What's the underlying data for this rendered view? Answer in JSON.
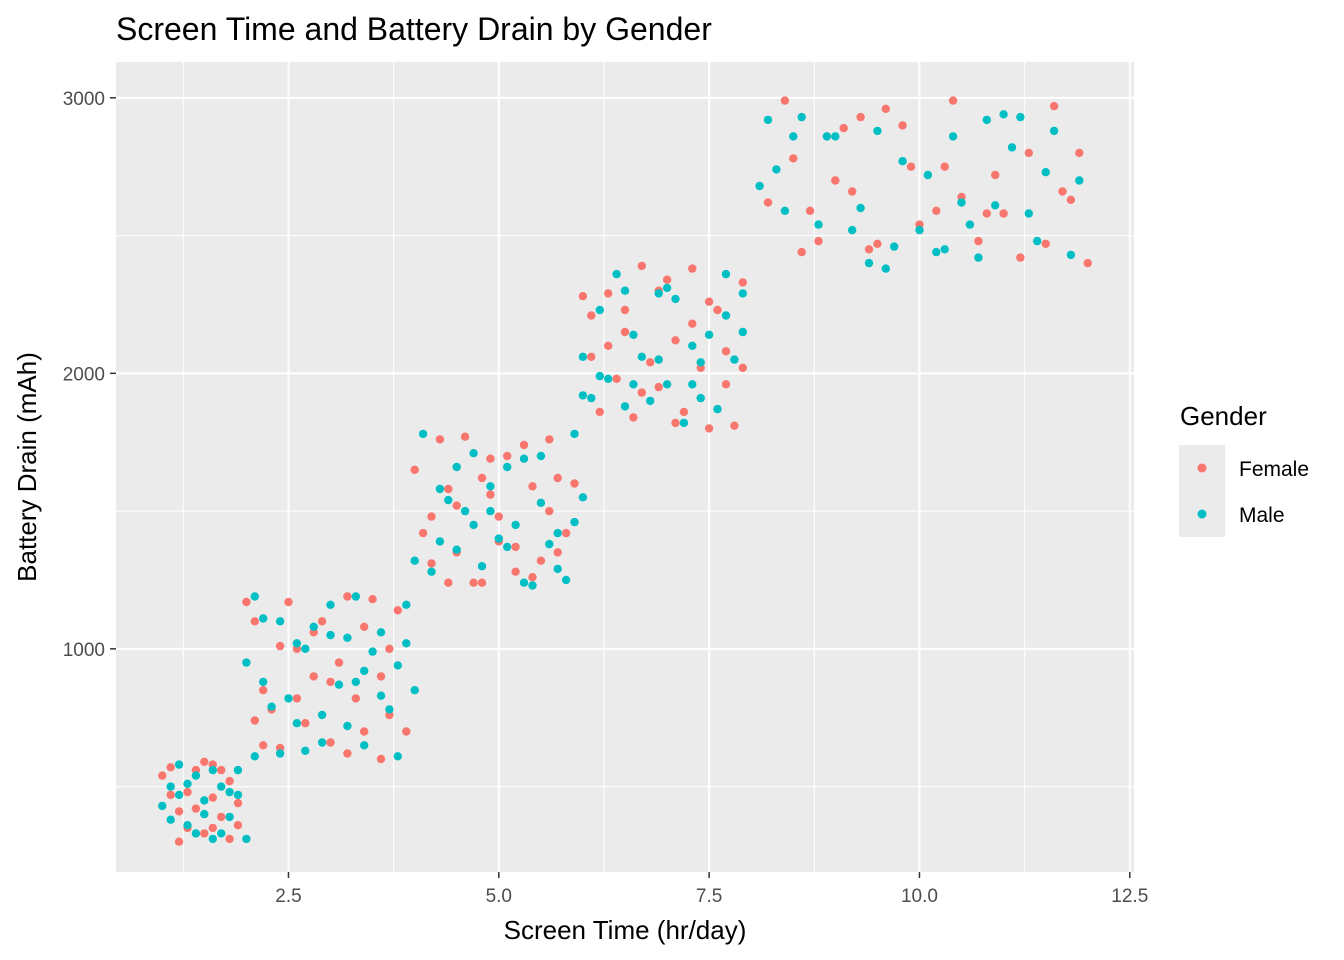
{
  "chart_data": {
    "type": "scatter",
    "title": "Screen Time and Battery Drain by Gender",
    "xlabel": "Screen Time (hr/day)",
    "ylabel": "Battery Drain (mAh)",
    "xlim": [
      0.45,
      12.55
    ],
    "ylim": [
      190,
      3130
    ],
    "x_ticks": [
      2.5,
      5.0,
      7.5,
      10.0,
      12.5
    ],
    "x_tick_labels": [
      "2.5",
      "5.0",
      "7.5",
      "10.0",
      "12.5"
    ],
    "y_ticks": [
      1000,
      2000,
      3000
    ],
    "y_tick_labels": [
      "1000",
      "2000",
      "3000"
    ],
    "grid": true,
    "legend": {
      "title": "Gender",
      "position": "right",
      "entries": [
        "Female",
        "Male"
      ]
    },
    "colors": {
      "Female": "#F8766D",
      "Male": "#00BFC4",
      "panel": "#EBEBEB",
      "grid": "#FFFFFF"
    },
    "series": [
      {
        "name": "Female",
        "points": [
          [
            1.0,
            540
          ],
          [
            1.1,
            570
          ],
          [
            1.2,
            300
          ],
          [
            1.3,
            480
          ],
          [
            1.4,
            420
          ],
          [
            1.5,
            590
          ],
          [
            1.6,
            350
          ],
          [
            1.7,
            560
          ],
          [
            1.8,
            310
          ],
          [
            1.9,
            440
          ],
          [
            1.3,
            350
          ],
          [
            1.6,
            460
          ],
          [
            1.2,
            410
          ],
          [
            1.5,
            330
          ],
          [
            1.8,
            520
          ],
          [
            1.4,
            560
          ],
          [
            1.1,
            470
          ],
          [
            1.7,
            390
          ],
          [
            1.9,
            360
          ],
          [
            1.6,
            580
          ],
          [
            2.0,
            1170
          ],
          [
            2.1,
            1100
          ],
          [
            2.2,
            850
          ],
          [
            2.3,
            780
          ],
          [
            2.4,
            640
          ],
          [
            2.5,
            1170
          ],
          [
            2.6,
            1000
          ],
          [
            2.7,
            730
          ],
          [
            2.8,
            900
          ],
          [
            2.9,
            1100
          ],
          [
            3.0,
            660
          ],
          [
            3.1,
            950
          ],
          [
            3.2,
            1190
          ],
          [
            3.3,
            820
          ],
          [
            3.4,
            700
          ],
          [
            3.5,
            1180
          ],
          [
            3.6,
            900
          ],
          [
            3.7,
            760
          ],
          [
            3.8,
            1140
          ],
          [
            3.9,
            700
          ],
          [
            2.2,
            650
          ],
          [
            2.6,
            820
          ],
          [
            3.0,
            880
          ],
          [
            3.4,
            1080
          ],
          [
            3.7,
            1000
          ],
          [
            2.4,
            1010
          ],
          [
            3.2,
            620
          ],
          [
            2.8,
            1060
          ],
          [
            3.6,
            600
          ],
          [
            2.1,
            740
          ],
          [
            4.0,
            1650
          ],
          [
            4.1,
            1420
          ],
          [
            4.2,
            1310
          ],
          [
            4.3,
            1760
          ],
          [
            4.4,
            1580
          ],
          [
            4.5,
            1350
          ],
          [
            4.6,
            1770
          ],
          [
            4.7,
            1240
          ],
          [
            4.8,
            1620
          ],
          [
            4.9,
            1560
          ],
          [
            5.0,
            1480
          ],
          [
            5.1,
            1700
          ],
          [
            5.2,
            1280
          ],
          [
            5.3,
            1740
          ],
          [
            5.4,
            1590
          ],
          [
            5.5,
            1320
          ],
          [
            5.6,
            1500
          ],
          [
            5.7,
            1620
          ],
          [
            5.8,
            1420
          ],
          [
            5.9,
            1600
          ],
          [
            4.5,
            1520
          ],
          [
            4.8,
            1240
          ],
          [
            5.2,
            1370
          ],
          [
            5.6,
            1760
          ],
          [
            4.2,
            1480
          ],
          [
            4.9,
            1690
          ],
          [
            5.4,
            1260
          ],
          [
            4.4,
            1240
          ],
          [
            5.0,
            1390
          ],
          [
            5.7,
            1350
          ],
          [
            6.0,
            2280
          ],
          [
            6.1,
            2060
          ],
          [
            6.2,
            1860
          ],
          [
            6.3,
            2290
          ],
          [
            6.4,
            1980
          ],
          [
            6.5,
            2150
          ],
          [
            6.6,
            1840
          ],
          [
            6.7,
            2390
          ],
          [
            6.8,
            2040
          ],
          [
            6.9,
            1950
          ],
          [
            7.0,
            2340
          ],
          [
            7.1,
            2120
          ],
          [
            7.2,
            1860
          ],
          [
            7.3,
            2380
          ],
          [
            7.4,
            2020
          ],
          [
            7.5,
            1800
          ],
          [
            7.6,
            2230
          ],
          [
            7.7,
            2080
          ],
          [
            7.8,
            1810
          ],
          [
            7.9,
            2330
          ],
          [
            6.5,
            2230
          ],
          [
            6.9,
            2300
          ],
          [
            7.3,
            2180
          ],
          [
            7.7,
            1960
          ],
          [
            6.3,
            2100
          ],
          [
            7.1,
            1820
          ],
          [
            6.7,
            1930
          ],
          [
            7.5,
            2260
          ],
          [
            6.1,
            2210
          ],
          [
            7.9,
            2020
          ],
          [
            8.2,
            2620
          ],
          [
            8.4,
            2990
          ],
          [
            8.5,
            2780
          ],
          [
            8.6,
            2440
          ],
          [
            8.7,
            2590
          ],
          [
            8.9,
            2860
          ],
          [
            9.0,
            2700
          ],
          [
            9.2,
            2660
          ],
          [
            9.3,
            2930
          ],
          [
            9.4,
            2450
          ],
          [
            9.5,
            2470
          ],
          [
            9.6,
            2960
          ],
          [
            9.8,
            2900
          ],
          [
            10.0,
            2540
          ],
          [
            10.2,
            2590
          ],
          [
            10.4,
            2990
          ],
          [
            10.5,
            2640
          ],
          [
            10.7,
            2480
          ],
          [
            10.9,
            2720
          ],
          [
            11.0,
            2580
          ],
          [
            11.2,
            2420
          ],
          [
            11.3,
            2800
          ],
          [
            11.5,
            2470
          ],
          [
            11.6,
            2970
          ],
          [
            11.7,
            2660
          ],
          [
            11.9,
            2800
          ],
          [
            12.0,
            2400
          ],
          [
            9.1,
            2890
          ],
          [
            9.9,
            2750
          ],
          [
            10.8,
            2580
          ],
          [
            11.8,
            2630
          ],
          [
            8.8,
            2480
          ],
          [
            10.3,
            2750
          ]
        ]
      },
      {
        "name": "Male",
        "points": [
          [
            1.0,
            430
          ],
          [
            1.1,
            500
          ],
          [
            1.2,
            580
          ],
          [
            1.3,
            360
          ],
          [
            1.4,
            540
          ],
          [
            1.5,
            400
          ],
          [
            1.6,
            310
          ],
          [
            1.7,
            500
          ],
          [
            1.8,
            480
          ],
          [
            1.9,
            560
          ],
          [
            2.0,
            310
          ],
          [
            1.2,
            470
          ],
          [
            1.5,
            450
          ],
          [
            1.8,
            390
          ],
          [
            1.3,
            510
          ],
          [
            1.6,
            560
          ],
          [
            1.1,
            380
          ],
          [
            1.7,
            330
          ],
          [
            1.4,
            330
          ],
          [
            1.9,
            470
          ],
          [
            2.0,
            950
          ],
          [
            2.1,
            1190
          ],
          [
            2.2,
            1110
          ],
          [
            2.3,
            790
          ],
          [
            2.4,
            620
          ],
          [
            2.5,
            820
          ],
          [
            2.6,
            1020
          ],
          [
            2.7,
            630
          ],
          [
            2.8,
            1080
          ],
          [
            2.9,
            660
          ],
          [
            3.0,
            1160
          ],
          [
            3.1,
            870
          ],
          [
            3.2,
            720
          ],
          [
            3.3,
            1190
          ],
          [
            3.4,
            650
          ],
          [
            3.5,
            990
          ],
          [
            3.6,
            830
          ],
          [
            3.7,
            780
          ],
          [
            3.8,
            610
          ],
          [
            3.9,
            1160
          ],
          [
            4.0,
            850
          ],
          [
            2.2,
            880
          ],
          [
            2.6,
            730
          ],
          [
            3.0,
            1050
          ],
          [
            3.4,
            920
          ],
          [
            3.8,
            940
          ],
          [
            2.4,
            1100
          ],
          [
            3.2,
            1040
          ],
          [
            3.6,
            1060
          ],
          [
            2.9,
            760
          ],
          [
            2.1,
            610
          ],
          [
            3.9,
            1020
          ],
          [
            3.3,
            880
          ],
          [
            2.7,
            1000
          ],
          [
            4.0,
            1320
          ],
          [
            4.1,
            1780
          ],
          [
            4.2,
            1280
          ],
          [
            4.3,
            1390
          ],
          [
            4.4,
            1540
          ],
          [
            4.5,
            1660
          ],
          [
            4.6,
            1500
          ],
          [
            4.7,
            1710
          ],
          [
            4.8,
            1300
          ],
          [
            4.9,
            1590
          ],
          [
            5.0,
            1400
          ],
          [
            5.1,
            1660
          ],
          [
            5.2,
            1450
          ],
          [
            5.3,
            1690
          ],
          [
            5.4,
            1230
          ],
          [
            5.5,
            1530
          ],
          [
            5.6,
            1380
          ],
          [
            5.7,
            1290
          ],
          [
            5.8,
            1250
          ],
          [
            5.9,
            1780
          ],
          [
            6.0,
            1550
          ],
          [
            4.3,
            1580
          ],
          [
            4.7,
            1450
          ],
          [
            5.1,
            1370
          ],
          [
            5.5,
            1700
          ],
          [
            5.9,
            1460
          ],
          [
            4.5,
            1360
          ],
          [
            4.9,
            1500
          ],
          [
            5.3,
            1240
          ],
          [
            5.7,
            1420
          ],
          [
            6.0,
            2060
          ],
          [
            6.1,
            1910
          ],
          [
            6.2,
            2230
          ],
          [
            6.3,
            1980
          ],
          [
            6.4,
            2360
          ],
          [
            6.5,
            1880
          ],
          [
            6.6,
            2140
          ],
          [
            6.7,
            2060
          ],
          [
            6.8,
            1900
          ],
          [
            6.9,
            2290
          ],
          [
            7.0,
            1960
          ],
          [
            7.1,
            2270
          ],
          [
            7.2,
            1820
          ],
          [
            7.3,
            2100
          ],
          [
            7.4,
            1910
          ],
          [
            7.5,
            2140
          ],
          [
            7.6,
            1870
          ],
          [
            7.7,
            2360
          ],
          [
            7.8,
            2050
          ],
          [
            7.9,
            2290
          ],
          [
            6.5,
            2300
          ],
          [
            6.9,
            2050
          ],
          [
            7.3,
            1960
          ],
          [
            7.7,
            2210
          ],
          [
            6.2,
            1990
          ],
          [
            7.0,
            2310
          ],
          [
            6.6,
            1960
          ],
          [
            7.4,
            2040
          ],
          [
            6.0,
            1920
          ],
          [
            7.9,
            2150
          ],
          [
            8.1,
            2680
          ],
          [
            8.2,
            2920
          ],
          [
            8.4,
            2590
          ],
          [
            8.5,
            2860
          ],
          [
            8.6,
            2930
          ],
          [
            8.8,
            2540
          ],
          [
            8.9,
            2860
          ],
          [
            9.0,
            2860
          ],
          [
            9.3,
            2600
          ],
          [
            9.4,
            2400
          ],
          [
            9.5,
            2880
          ],
          [
            9.7,
            2460
          ],
          [
            9.8,
            2770
          ],
          [
            10.0,
            2520
          ],
          [
            10.1,
            2720
          ],
          [
            10.2,
            2440
          ],
          [
            10.3,
            2450
          ],
          [
            10.5,
            2620
          ],
          [
            10.6,
            2540
          ],
          [
            10.7,
            2420
          ],
          [
            10.8,
            2920
          ],
          [
            11.0,
            2940
          ],
          [
            11.1,
            2820
          ],
          [
            11.2,
            2930
          ],
          [
            11.4,
            2480
          ],
          [
            11.5,
            2730
          ],
          [
            11.6,
            2880
          ],
          [
            11.8,
            2430
          ],
          [
            11.9,
            2700
          ],
          [
            9.6,
            2380
          ],
          [
            10.4,
            2860
          ],
          [
            11.3,
            2580
          ],
          [
            8.3,
            2740
          ],
          [
            9.2,
            2520
          ],
          [
            10.9,
            2610
          ]
        ]
      }
    ]
  }
}
